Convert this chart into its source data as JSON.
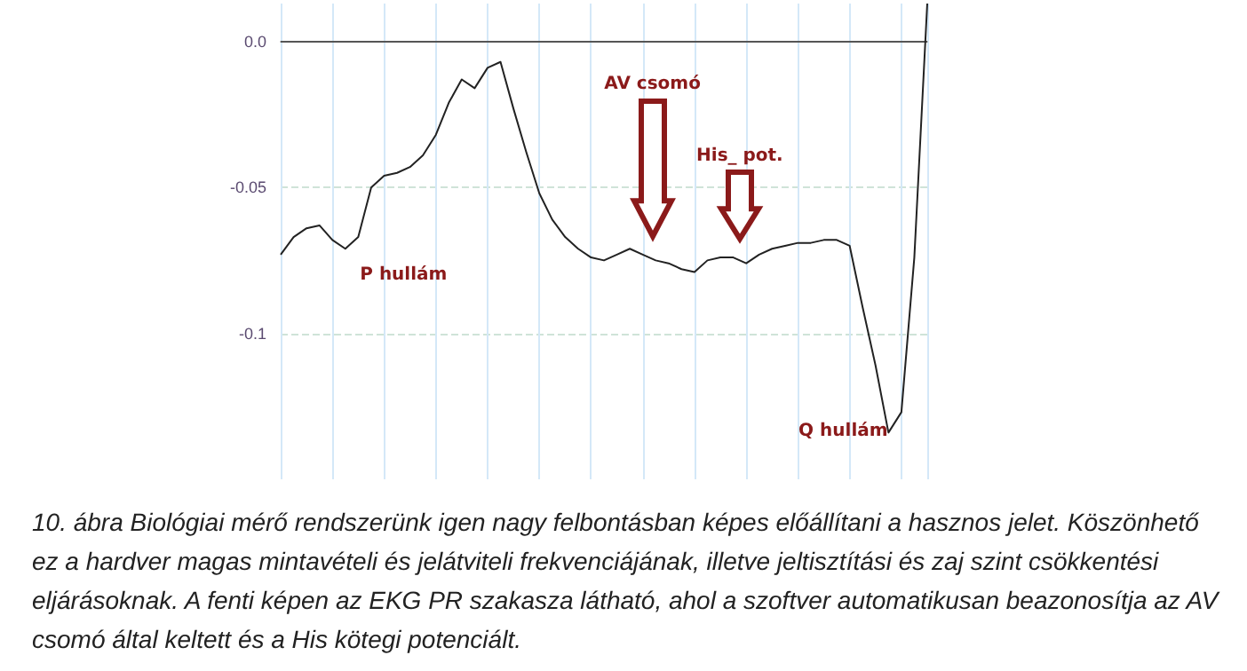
{
  "chart_data": {
    "type": "line",
    "categories": [
      null,
      null,
      null,
      null,
      null,
      null,
      null,
      null,
      null,
      null,
      null,
      null,
      null,
      null,
      null,
      null,
      null,
      null,
      null,
      null,
      null,
      null,
      null,
      null,
      null,
      null,
      null,
      null,
      null,
      null,
      null,
      null,
      null,
      null,
      null,
      null,
      null,
      null,
      null,
      null,
      null,
      null,
      null,
      null,
      null,
      null,
      null,
      null,
      null,
      null,
      null
    ],
    "series": [
      {
        "color": "#222222",
        "values": [
          -0.073,
          -0.067,
          -0.064,
          -0.063,
          -0.068,
          -0.071,
          -0.067,
          -0.05,
          -0.046,
          -0.045,
          -0.043,
          -0.039,
          -0.032,
          -0.021,
          -0.013,
          -0.016,
          -0.009,
          -0.007,
          -0.023,
          -0.038,
          -0.052,
          -0.061,
          -0.067,
          -0.071,
          -0.074,
          -0.075,
          -0.073,
          -0.071,
          -0.073,
          -0.075,
          -0.076,
          -0.078,
          -0.079,
          -0.075,
          -0.074,
          -0.074,
          -0.076,
          -0.073,
          -0.071,
          -0.07,
          -0.069,
          -0.069,
          -0.068,
          -0.068,
          -0.07,
          -0.091,
          -0.111,
          -0.134,
          -0.127,
          -0.074,
          0.013
        ]
      }
    ],
    "ylim": [
      -0.15,
      0.013
    ],
    "yticks": [
      {
        "value": 0,
        "label": "0.0"
      },
      -0.05,
      -0.1
    ],
    "tick_labels": "y",
    "grid": true,
    "line_style": "solid",
    "ref_lines": [
      {
        "axis": "y",
        "value": 0,
        "color": "#555555"
      }
    ],
    "annotations": [
      "P hullám",
      "AV csomó",
      "His_ pot.",
      "Q hullám",
      "10. ábra Biológiai mérő rendszerünk igen nagy felbontásban képes előállítani a hasznos jelet. Köszönhető ez a hardver magas mintavételi és jelátviteli frekvenciájának, illetve jeltisztítási és zaj szint csökkentési eljárásoknak. A fenti képen az EKG PR szakasza látható, ahol a szoftver automatikusan beazonosítja az AV csomó által keltett és a His kötegi potenciált."
    ]
  }
}
